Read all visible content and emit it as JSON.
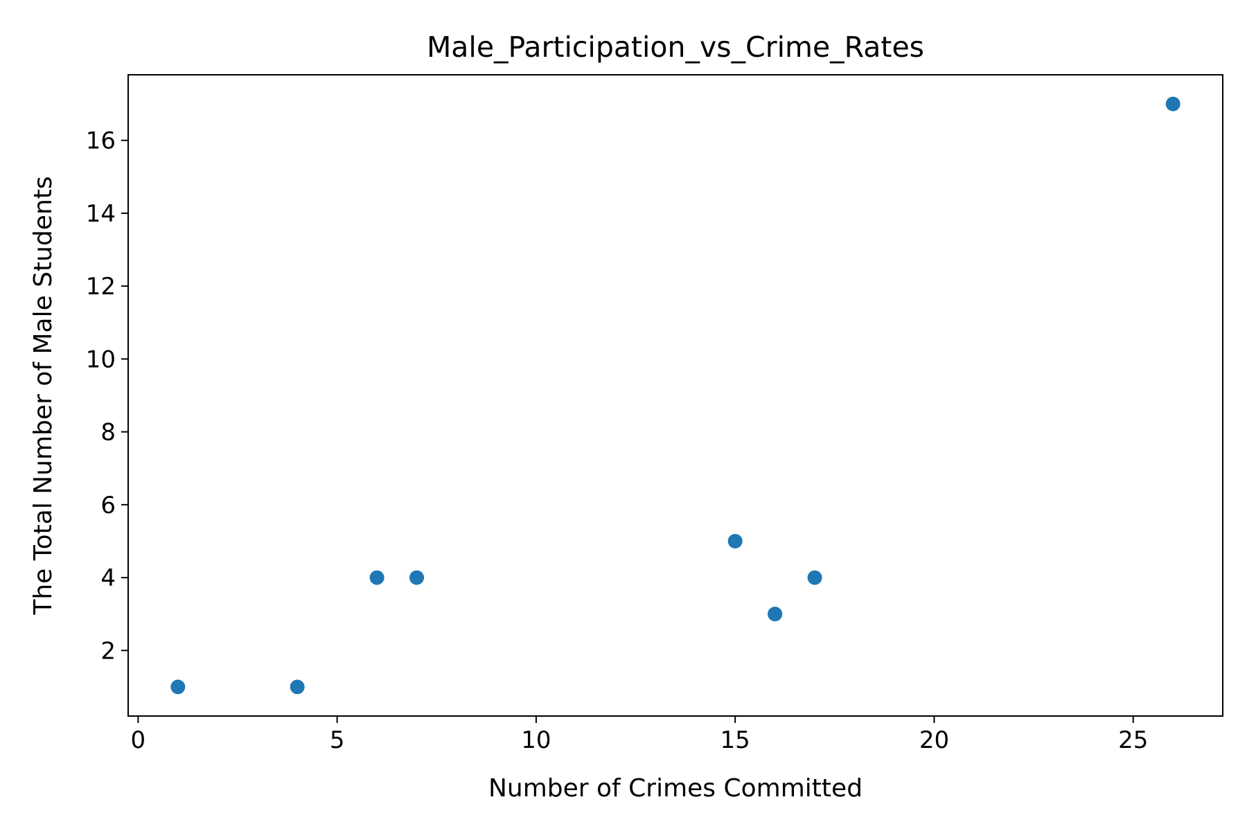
{
  "chart_data": {
    "type": "scatter",
    "title": "Male_Participation_vs_Crime_Rates",
    "xlabel": "Number of Crimes Committed",
    "ylabel": "The Total Number of Male Students",
    "xlim": [
      -0.25,
      27.25
    ],
    "ylim": [
      0.2,
      17.8
    ],
    "xticks": [
      0,
      5,
      10,
      15,
      20,
      25
    ],
    "yticks": [
      2,
      4,
      6,
      8,
      10,
      12,
      14,
      16
    ],
    "grid": false,
    "point_color": "#1f77b4",
    "points": [
      {
        "x": 1,
        "y": 1
      },
      {
        "x": 4,
        "y": 1
      },
      {
        "x": 6,
        "y": 4
      },
      {
        "x": 7,
        "y": 4
      },
      {
        "x": 15,
        "y": 5
      },
      {
        "x": 16,
        "y": 3
      },
      {
        "x": 16,
        "y": 3
      },
      {
        "x": 17,
        "y": 4
      },
      {
        "x": 26,
        "y": 17
      }
    ]
  }
}
